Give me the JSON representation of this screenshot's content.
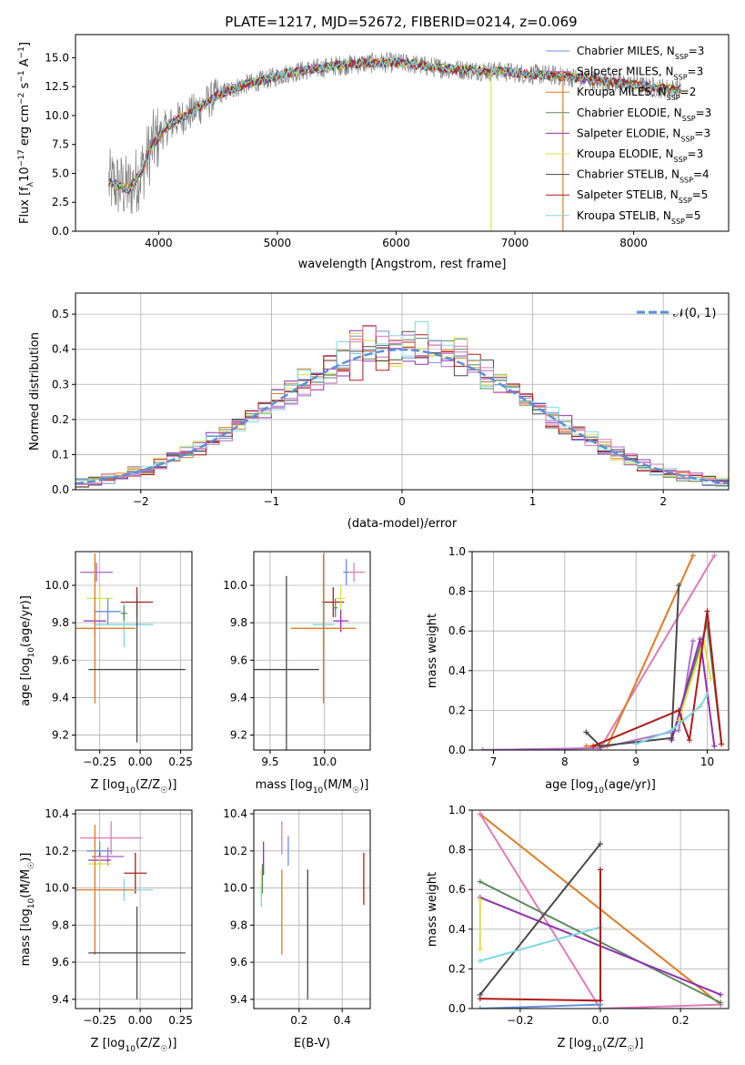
{
  "figure_title": "PLATE=1217, MJD=52672, FIBERID=0214, z=0.069",
  "colors": {
    "chabrier_miles": "#6a8fd8",
    "salpeter_miles": "#b06fc7",
    "kroupa_miles": "#e07b22",
    "chabrier_elodie": "#5a8a5e",
    "salpeter_elodie": "#9130b0",
    "kroupa_elodie": "#d8e34a",
    "chabrier_stelib": "#4a4a4a",
    "salpeter_stelib": "#b01a1a",
    "kroupa_stelib": "#7dd8e0",
    "observed": "#808080",
    "normal": "#5b8fd9",
    "pink": "#e07ab8"
  },
  "chart_data": [
    {
      "id": "spectrum",
      "type": "line",
      "title": "PLATE=1217, MJD=52672, FIBERID=0214, z=0.069",
      "xlabel": "wavelength [Angstrom, rest frame]",
      "ylabel": "Flux [f_λ 10^-17 erg cm^-2 s^-1 A^-1]",
      "xlim": [
        3300,
        8800
      ],
      "ylim": [
        0,
        17
      ],
      "xticks": [
        "4000",
        "5000",
        "6000",
        "7000",
        "8000"
      ],
      "yticks": [
        "0.0",
        "2.5",
        "5.0",
        "7.5",
        "10.0",
        "12.5",
        "15.0"
      ],
      "legend_position": "top-right",
      "continuum_points": [
        [
          3580,
          4.2
        ],
        [
          3650,
          4.0
        ],
        [
          3750,
          3.6
        ],
        [
          3850,
          5.0
        ],
        [
          3950,
          7.5
        ],
        [
          4050,
          8.8
        ],
        [
          4150,
          9.6
        ],
        [
          4300,
          10.4
        ],
        [
          4500,
          11.8
        ],
        [
          4700,
          12.6
        ],
        [
          4900,
          13.1
        ],
        [
          5100,
          13.7
        ],
        [
          5300,
          14.0
        ],
        [
          5500,
          14.3
        ],
        [
          5700,
          14.5
        ],
        [
          5900,
          14.6
        ],
        [
          6100,
          14.5
        ],
        [
          6300,
          14.2
        ],
        [
          6500,
          14.0
        ],
        [
          6700,
          13.9
        ],
        [
          6900,
          13.8
        ],
        [
          7100,
          13.6
        ],
        [
          7300,
          13.5
        ],
        [
          7500,
          13.3
        ],
        [
          7700,
          13.0
        ],
        [
          7900,
          12.8
        ],
        [
          8100,
          12.5
        ],
        [
          8300,
          12.3
        ],
        [
          8400,
          12.3
        ]
      ],
      "series": [
        {
          "name": "Chabrier MILES",
          "nssp": "N_SSP=3",
          "color": "#6a8fd8"
        },
        {
          "name": "Salpeter MILES",
          "nssp": "N_SSP=3",
          "color": "#b06fc7"
        },
        {
          "name": "Kroupa MILES",
          "nssp": "N_SSP=2",
          "color": "#e07b22"
        },
        {
          "name": "Chabrier ELODIE",
          "nssp": "N_SSP=3",
          "color": "#5a8a5e"
        },
        {
          "name": "Salpeter ELODIE",
          "nssp": "N_SSP=3",
          "color": "#9130b0"
        },
        {
          "name": "Kroupa ELODIE",
          "nssp": "N_SSP=3",
          "color": "#d8e34a"
        },
        {
          "name": "Chabrier STELIB",
          "nssp": "N_SSP=4",
          "color": "#4a4a4a"
        },
        {
          "name": "Salpeter STELIB",
          "nssp": "N_SSP=5",
          "color": "#b01a1a"
        },
        {
          "name": "Kroupa STELIB",
          "nssp": "N_SSP=5",
          "color": "#7dd8e0"
        }
      ]
    },
    {
      "id": "residuals",
      "type": "line",
      "xlabel": "(data-model)/error",
      "ylabel": "Normed distribution",
      "xlim": [
        -2.5,
        2.5
      ],
      "ylim": [
        0,
        0.56
      ],
      "xticks": [
        "−2",
        "−1",
        "0",
        "1",
        "2"
      ],
      "yticks": [
        "0.0",
        "0.1",
        "0.2",
        "0.3",
        "0.4",
        "0.5"
      ],
      "legend": "𝒩(0, 1)",
      "legend_position": "top-right",
      "normal_curve": {
        "mean": 0,
        "sigma": 1
      },
      "histogram_bin_width": 0.1
    },
    {
      "id": "age_vs_Z",
      "type": "scatter",
      "xlabel": "Z [log10(Z/Z☉)]",
      "ylabel": "age [log10(age/yr)]",
      "xlim": [
        -0.4,
        0.32
      ],
      "ylim": [
        9.12,
        10.18
      ],
      "xticks": [
        "−0.25",
        "0.00",
        "0.25"
      ],
      "yticks": [
        "9.2",
        "9.4",
        "9.6",
        "9.8",
        "10.0"
      ],
      "points": [
        {
          "x": -0.27,
          "y": 10.07,
          "xerr": 0.1,
          "yerr": 0.05,
          "color": "#e07ab8"
        },
        {
          "x": -0.27,
          "y": 10.07,
          "xerr": 0.1,
          "yerr": 0.05,
          "color": "#b06fc7"
        },
        {
          "x": -0.02,
          "y": 9.91,
          "xerr": 0.1,
          "yerr": 0.08,
          "color": "#b01a1a"
        },
        {
          "x": -0.25,
          "y": 9.93,
          "xerr": 0.08,
          "yerr": 0.07,
          "color": "#d8e34a"
        },
        {
          "x": -0.2,
          "y": 9.86,
          "xerr": 0.08,
          "yerr": 0.07,
          "color": "#6a8fd8"
        },
        {
          "x": -0.28,
          "y": 9.81,
          "xerr": 0.07,
          "yerr": 0.08,
          "color": "#9130b0"
        },
        {
          "x": -0.1,
          "y": 9.79,
          "xerr": 0.18,
          "yerr": 0.12,
          "color": "#7dd8e0"
        },
        {
          "x": -0.28,
          "y": 9.77,
          "xerr": 0.25,
          "yerr": 0.4,
          "color": "#e07b22"
        },
        {
          "x": -0.02,
          "y": 9.55,
          "xerr": 0.3,
          "yerr": 0.39,
          "color": "#4a4a4a"
        },
        {
          "x": -0.1,
          "y": 9.85,
          "xerr": 0.02,
          "yerr": 0.04,
          "color": "#5a8a5e"
        }
      ]
    },
    {
      "id": "age_vs_mass",
      "type": "scatter",
      "xlabel": "mass [log10(M/M☉)]",
      "ylabel": "",
      "xlim": [
        9.35,
        10.42
      ],
      "ylim": [
        9.12,
        10.18
      ],
      "xticks": [
        "9.5",
        "10.0"
      ],
      "yticks": [
        "9.2",
        "9.4",
        "9.6",
        "9.8",
        "10.0"
      ],
      "points": [
        {
          "x": 10.27,
          "y": 10.07,
          "xerr": 0.1,
          "yerr": 0.05,
          "color": "#e07ab8"
        },
        {
          "x": 10.2,
          "y": 10.07,
          "xerr": 0.02,
          "yerr": 0.07,
          "color": "#6a8fd8"
        },
        {
          "x": 10.08,
          "y": 9.91,
          "xerr": 0.1,
          "yerr": 0.08,
          "color": "#b01a1a"
        },
        {
          "x": 10.15,
          "y": 9.93,
          "xerr": 0.04,
          "yerr": 0.07,
          "color": "#d8e34a"
        },
        {
          "x": 10.15,
          "y": 9.81,
          "xerr": 0.07,
          "yerr": 0.06,
          "color": "#9130b0"
        },
        {
          "x": 9.99,
          "y": 9.79,
          "xerr": 0.1,
          "yerr": 0.12,
          "color": "#7dd8e0"
        },
        {
          "x": 9.99,
          "y": 9.77,
          "xerr": 0.3,
          "yerr": 0.4,
          "color": "#e07b22"
        },
        {
          "x": 9.65,
          "y": 9.55,
          "xerr": 0.3,
          "yerr": 0.5,
          "color": "#4a4a4a"
        },
        {
          "x": 10.1,
          "y": 9.88,
          "xerr": 0.02,
          "yerr": 0.05,
          "color": "#5a8a5e"
        }
      ]
    },
    {
      "id": "weight_vs_age",
      "type": "line",
      "xlabel": "age [log10(age/yr)]",
      "ylabel": "mass weight",
      "xlim": [
        6.7,
        10.3
      ],
      "ylim": [
        0,
        1.0
      ],
      "xticks": [
        "7",
        "8",
        "9",
        "10"
      ],
      "yticks": [
        "0.0",
        "0.2",
        "0.4",
        "0.6",
        "0.8",
        "1.0"
      ],
      "series": [
        {
          "color": "#e07ab8",
          "points": [
            [
              6.85,
              0.0
            ],
            [
              8.5,
              0.01
            ],
            [
              10.1,
              0.98
            ]
          ]
        },
        {
          "color": "#b06fc7",
          "points": [
            [
              6.85,
              0.0
            ],
            [
              8.5,
              0.01
            ],
            [
              9.6,
              0.1
            ],
            [
              9.8,
              0.55
            ]
          ]
        },
        {
          "color": "#e07b22",
          "points": [
            [
              8.3,
              0.02
            ],
            [
              8.6,
              0.02
            ],
            [
              9.8,
              0.98
            ]
          ]
        },
        {
          "color": "#5a8a5e",
          "points": [
            [
              9.5,
              0.05
            ],
            [
              10.0,
              0.64
            ],
            [
              10.2,
              0.03
            ]
          ]
        },
        {
          "color": "#9130b0",
          "points": [
            [
              9.5,
              0.05
            ],
            [
              9.9,
              0.56
            ],
            [
              10.1,
              0.02
            ]
          ]
        },
        {
          "color": "#d8e34a",
          "points": [
            [
              9.6,
              0.15
            ],
            [
              9.95,
              0.55
            ],
            [
              10.05,
              0.36
            ]
          ]
        },
        {
          "color": "#4a4a4a",
          "points": [
            [
              8.3,
              0.09
            ],
            [
              8.5,
              0.02
            ],
            [
              9.5,
              0.06
            ],
            [
              9.6,
              0.83
            ]
          ]
        },
        {
          "color": "#b01a1a",
          "points": [
            [
              8.4,
              0.02
            ],
            [
              9.6,
              0.2
            ],
            [
              9.75,
              0.05
            ],
            [
              10.0,
              0.7
            ],
            [
              10.2,
              0.03
            ]
          ]
        },
        {
          "color": "#7dd8e0",
          "points": [
            [
              9.0,
              0.03
            ],
            [
              9.5,
              0.1
            ],
            [
              9.9,
              0.22
            ],
            [
              10.0,
              0.28
            ]
          ]
        }
      ]
    },
    {
      "id": "mass_vs_Z",
      "type": "scatter",
      "xlabel": "Z [log10(Z/Z☉)]",
      "ylabel": "mass [log10(M/M☉)]",
      "xlim": [
        -0.4,
        0.32
      ],
      "ylim": [
        9.35,
        10.42
      ],
      "xticks": [
        "−0.25",
        "0.00",
        "0.25"
      ],
      "yticks": [
        "9.4",
        "9.6",
        "9.8",
        "10.0",
        "10.2",
        "10.4"
      ],
      "points": [
        {
          "x": -0.18,
          "y": 10.27,
          "xerr": 0.19,
          "yerr": 0.09,
          "color": "#e07ab8"
        },
        {
          "x": -0.25,
          "y": 10.2,
          "xerr": 0.08,
          "yerr": 0.05,
          "color": "#6a8fd8"
        },
        {
          "x": -0.2,
          "y": 10.17,
          "xerr": 0.1,
          "yerr": 0.05,
          "color": "#b06fc7"
        },
        {
          "x": -0.25,
          "y": 10.15,
          "xerr": 0.07,
          "yerr": 0.04,
          "color": "#9130b0"
        },
        {
          "x": -0.25,
          "y": 10.13,
          "xerr": 0.07,
          "yerr": 0.04,
          "color": "#d8e34a"
        },
        {
          "x": -0.03,
          "y": 10.08,
          "xerr": 0.07,
          "yerr": 0.11,
          "color": "#b01a1a"
        },
        {
          "x": -0.1,
          "y": 9.99,
          "xerr": 0.18,
          "yerr": 0.06,
          "color": "#7dd8e0"
        },
        {
          "x": -0.28,
          "y": 9.99,
          "xerr": 0.25,
          "yerr": 0.35,
          "color": "#e07b22"
        },
        {
          "x": -0.02,
          "y": 9.65,
          "xerr": 0.3,
          "yerr": 0.25,
          "color": "#4a4a4a"
        }
      ]
    },
    {
      "id": "mass_vs_ebv",
      "type": "scatter",
      "xlabel": "E(B-V)",
      "ylabel": "",
      "xlim": [
        -0.01,
        0.53
      ],
      "ylim": [
        9.35,
        10.42
      ],
      "xticks": [
        "0.2",
        "0.4"
      ],
      "yticks": [
        "9.4",
        "9.6",
        "9.8",
        "10.0",
        "10.2",
        "10.4"
      ],
      "points": [
        {
          "x": 0.12,
          "y": 10.27,
          "yerr": 0.09,
          "color": "#e07ab8"
        },
        {
          "x": 0.15,
          "y": 10.2,
          "yerr": 0.08,
          "color": "#6a8fd8"
        },
        {
          "x": 0.035,
          "y": 10.16,
          "yerr": 0.09,
          "color": "#9130b0"
        },
        {
          "x": 0.03,
          "y": 10.05,
          "yerr": 0.08,
          "color": "#5a8a5e"
        },
        {
          "x": 0.025,
          "y": 10.0,
          "yerr": 0.1,
          "color": "#d8e34a"
        },
        {
          "x": 0.025,
          "y": 9.96,
          "yerr": 0.06,
          "color": "#7dd8e0"
        },
        {
          "x": 0.12,
          "y": 9.87,
          "yerr": 0.23,
          "color": "#e07b22"
        },
        {
          "x": 0.24,
          "y": 9.75,
          "yerr": 0.35,
          "color": "#4a4a4a"
        },
        {
          "x": 0.5,
          "y": 10.05,
          "yerr": 0.14,
          "color": "#b01a1a"
        }
      ]
    },
    {
      "id": "weight_vs_Z",
      "type": "line",
      "xlabel": "Z [log10(Z/Z☉)]",
      "ylabel": "mass weight",
      "xlim": [
        -0.32,
        0.32
      ],
      "ylim": [
        0,
        1.0
      ],
      "xticks": [
        "−0.2",
        "0.0",
        "0.2"
      ],
      "yticks": [
        "0.0",
        "0.2",
        "0.4",
        "0.6",
        "0.8",
        "1.0"
      ],
      "series": [
        {
          "color": "#e07b22",
          "points": [
            [
              -0.3,
              0.98
            ],
            [
              0.3,
              0.02
            ]
          ]
        },
        {
          "color": "#e07ab8",
          "points": [
            [
              -0.3,
              0.98
            ],
            [
              0.0,
              0.0
            ],
            [
              0.3,
              0.02
            ]
          ]
        },
        {
          "color": "#5a8a5e",
          "points": [
            [
              -0.3,
              0.64
            ],
            [
              0.3,
              0.03
            ]
          ]
        },
        {
          "color": "#9130b0",
          "points": [
            [
              -0.3,
              0.56
            ],
            [
              0.3,
              0.07
            ]
          ]
        },
        {
          "color": "#4a4a4a",
          "points": [
            [
              -0.3,
              0.07
            ],
            [
              0.0,
              0.83
            ]
          ]
        },
        {
          "color": "#7dd8e0",
          "points": [
            [
              -0.3,
              0.24
            ],
            [
              0.0,
              0.41
            ],
            [
              0.0,
              0.0
            ]
          ]
        },
        {
          "color": "#b01a1a",
          "points": [
            [
              -0.3,
              0.05
            ],
            [
              0.0,
              0.04
            ],
            [
              0.0,
              0.7
            ]
          ]
        },
        {
          "color": "#d8e34a",
          "points": [
            [
              -0.3,
              0.55
            ],
            [
              -0.3,
              0.3
            ]
          ]
        },
        {
          "color": "#6a8fd8",
          "points": [
            [
              -0.3,
              0.0
            ],
            [
              0.0,
              0.02
            ]
          ]
        }
      ]
    }
  ]
}
